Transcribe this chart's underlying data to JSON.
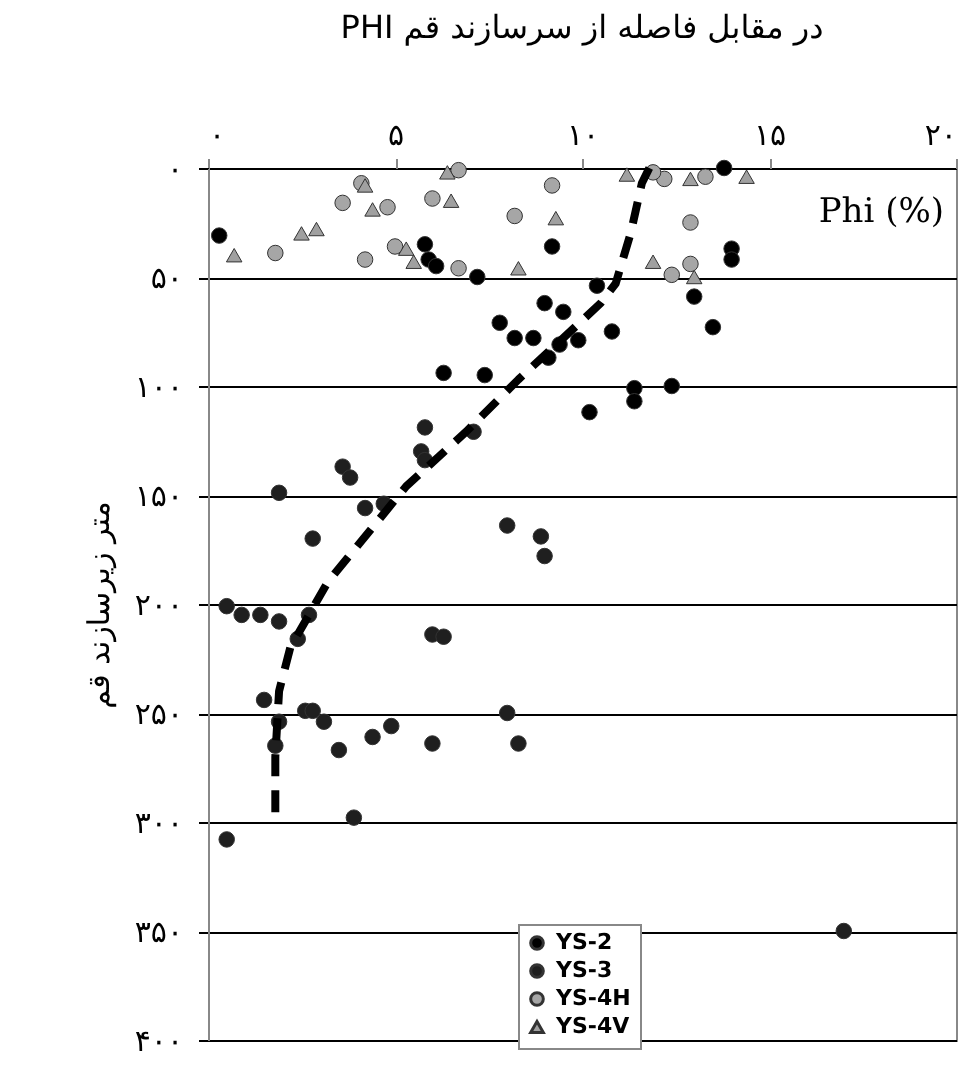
{
  "chart_data": {
    "type": "scatter",
    "title": "PHI در مقابل فاصله از سرسازند قم",
    "ylabel": "متر زیرسازند قم",
    "annotations": [
      "Phi (%)"
    ],
    "xlim": [
      0,
      20
    ],
    "xticks": [
      {
        "value": 0,
        "label": "۰"
      },
      {
        "value": 5,
        "label": "۵"
      },
      {
        "value": 10,
        "label": "۱۰"
      },
      {
        "value": 15,
        "label": "۱۵"
      },
      {
        "value": 20,
        "label": "۲۰"
      }
    ],
    "ylim": [
      400,
      0
    ],
    "yticks": [
      {
        "value": 0,
        "label": "۰"
      },
      {
        "value": 50,
        "label": "۵۰"
      },
      {
        "value": 100,
        "label": "۱۰۰"
      },
      {
        "value": 150,
        "label": "۱۵۰"
      },
      {
        "value": 200,
        "label": "۲۰۰"
      },
      {
        "value": 250,
        "label": "۲۵۰"
      },
      {
        "value": 300,
        "label": "۳۰۰"
      },
      {
        "value": 350,
        "label": "۳۵۰"
      },
      {
        "value": 400,
        "label": "۴۰۰"
      }
    ],
    "grid": "y",
    "legend": "bottom",
    "series": [
      {
        "name": "YS-2",
        "color": "#000000",
        "marker": "circle",
        "x": [
          13.8,
          0.3,
          9.2,
          14.0,
          14.0,
          5.8,
          5.9,
          6.1,
          7.2,
          10.4,
          13.0,
          9.0,
          9.5,
          7.8,
          10.8,
          8.2,
          8.7,
          9.9,
          9.4,
          9.1,
          13.5,
          6.3,
          7.4,
          12.4,
          11.4,
          11.4,
          10.2
        ],
        "values": [
          0,
          31,
          36,
          37,
          42,
          35,
          42,
          45,
          50,
          54,
          59,
          62,
          66,
          71,
          75,
          78,
          78,
          79,
          81,
          87,
          73,
          94,
          95,
          100,
          101,
          107,
          112
        ]
      },
      {
        "name": "YS-3",
        "color": "#1f1f1f",
        "marker": "circle",
        "x": [
          5.8,
          7.1,
          5.7,
          5.8,
          3.6,
          3.8,
          1.9,
          4.2,
          4.7,
          8.0,
          8.9,
          9.0,
          2.8,
          0.5,
          0.9,
          1.4,
          1.9,
          2.7,
          2.4,
          6.0,
          6.3,
          1.5,
          1.9,
          1.8,
          2.6,
          2.8,
          3.1,
          3.5,
          4.4,
          4.9,
          6.0,
          8.0,
          8.3,
          3.9,
          0.5,
          17.0
        ],
        "values": [
          119,
          121,
          130,
          134,
          137,
          142,
          149,
          156,
          154,
          164,
          169,
          178,
          170,
          201,
          205,
          205,
          208,
          205,
          216,
          214,
          215,
          244,
          254,
          265,
          249,
          249,
          254,
          267,
          261,
          256,
          264,
          250,
          264,
          298,
          308,
          350
        ]
      },
      {
        "name": "YS-4H",
        "color": "#a6a6a6",
        "marker": "circle",
        "x": [
          6.7,
          9.2,
          12.2,
          11.9,
          13.3,
          4.1,
          3.6,
          4.8,
          6.0,
          8.2,
          12.9,
          1.8,
          4.2,
          5.0,
          6.7,
          12.9,
          12.4
        ],
        "values": [
          1,
          8,
          5,
          2,
          4,
          7,
          16,
          18,
          14,
          22,
          25,
          39,
          42,
          36,
          46,
          44,
          49
        ]
      },
      {
        "name": "YS-4V",
        "color": "#a0a0a0",
        "marker": "triangle",
        "x": [
          6.4,
          11.2,
          12.9,
          14.4,
          4.2,
          4.4,
          6.5,
          9.3,
          2.9,
          2.5,
          0.7,
          5.3,
          5.5,
          8.3,
          11.9,
          13.0
        ],
        "values": [
          2,
          3,
          5,
          4,
          8,
          19,
          15,
          23,
          28,
          30,
          40,
          37,
          43,
          46,
          43,
          50
        ]
      },
      {
        "type": "line",
        "color": "#000000",
        "marker": "none",
        "line_style": "dashed",
        "x": [
          11.8,
          11.6,
          11.3,
          10.9,
          10.5,
          9.5,
          8.3,
          6.9,
          5.3,
          3.2,
          2.2,
          1.9,
          1.8,
          1.8
        ],
        "values": [
          0,
          7,
          30,
          53,
          62,
          78,
          97,
          121,
          146,
          190,
          220,
          240,
          270,
          300
        ]
      }
    ]
  }
}
